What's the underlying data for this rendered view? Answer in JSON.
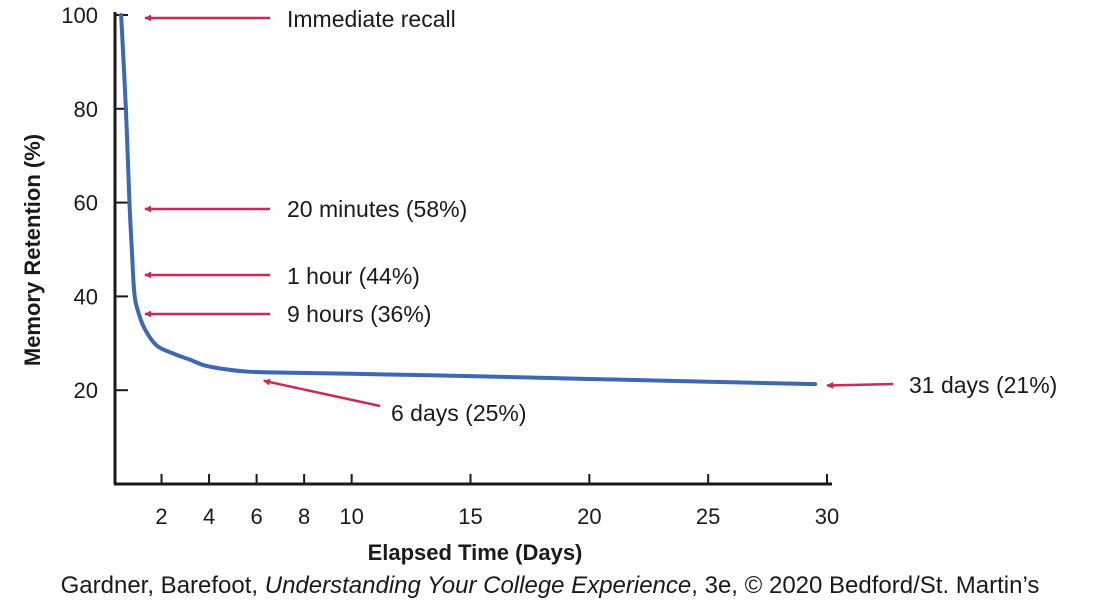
{
  "chart_data": {
    "type": "line",
    "xlabel": "Elapsed Time (Days)",
    "ylabel": "Memory Retention (%)",
    "xlim": [
      0,
      30
    ],
    "ylim": [
      0,
      100
    ],
    "x_ticks": [
      2,
      4,
      6,
      8,
      10,
      15,
      20,
      25,
      30
    ],
    "y_ticks": [
      20,
      40,
      60,
      80,
      100
    ],
    "grid": false,
    "series": [
      {
        "color": "#3d68b4",
        "x": [
          0.3,
          0.5,
          0.65,
          0.75,
          0.85,
          1.0,
          1.3,
          1.8,
          2.5,
          3.2,
          3.8,
          4.5,
          5.5,
          6.5,
          10,
          15,
          20,
          25,
          29.5
        ],
        "y": [
          100,
          80,
          60,
          50,
          41,
          37,
          33,
          29.5,
          27.8,
          26.5,
          25.3,
          24.6,
          24.0,
          23.8,
          23.5,
          23.0,
          22.4,
          21.8,
          21.3
        ]
      }
    ],
    "annotations": [
      {
        "text": "Immediate recall",
        "arrow_to": [
          1.3,
          99
        ]
      },
      {
        "text": "20 minutes (58%)",
        "arrow_to": [
          1.3,
          58
        ]
      },
      {
        "text": "1 hour (44%)",
        "arrow_to": [
          1.3,
          44
        ]
      },
      {
        "text": "9 hours (36%)",
        "arrow_to": [
          1.3,
          36
        ]
      },
      {
        "text": "6 days (25%)",
        "arrow_to": [
          6.3,
          22
        ]
      },
      {
        "text": "31 days (21%)",
        "arrow_to": [
          30,
          21
        ]
      }
    ],
    "arrow_color": "#cc2a52"
  },
  "credit": {
    "prefix": "Gardner, Barefoot, ",
    "title": "Understanding Your College Experience",
    "suffix": ", 3e, © 2020 Bedford/St. Martin’s"
  }
}
